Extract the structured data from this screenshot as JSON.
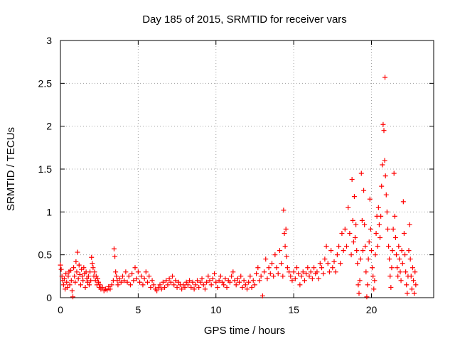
{
  "chart_data": {
    "type": "scatter",
    "title": "Day 185 of 2015, SRMTID for receiver vars",
    "xlabel": "GPS time / hours",
    "ylabel": "SRMTID / TECUs",
    "xlim": [
      0,
      24
    ],
    "ylim": [
      0,
      3
    ],
    "xticks": [
      "0",
      "5",
      "10",
      "15",
      "20"
    ],
    "yticks": [
      "0",
      "0.5",
      "1",
      "1.5",
      "2",
      "2.5",
      "3"
    ],
    "grid": true,
    "marker": "+",
    "color": "#ff0000",
    "series": [
      {
        "name": "vars",
        "points": [
          [
            0.0,
            0.38
          ],
          [
            0.05,
            0.33
          ],
          [
            0.1,
            0.25
          ],
          [
            0.15,
            0.2
          ],
          [
            0.2,
            0.15
          ],
          [
            0.25,
            0.22
          ],
          [
            0.3,
            0.1
          ],
          [
            0.35,
            0.28
          ],
          [
            0.4,
            0.18
          ],
          [
            0.45,
            0.12
          ],
          [
            0.5,
            0.25
          ],
          [
            0.55,
            0.3
          ],
          [
            0.6,
            0.15
          ],
          [
            0.65,
            0.32
          ],
          [
            0.7,
            0.2
          ],
          [
            0.75,
            0.08
          ],
          [
            0.8,
            0.01
          ],
          [
            0.85,
            0.35
          ],
          [
            0.9,
            0.25
          ],
          [
            0.95,
            0.18
          ],
          [
            1.0,
            0.42
          ],
          [
            1.05,
            0.3
          ],
          [
            1.1,
            0.53
          ],
          [
            1.15,
            0.22
          ],
          [
            1.2,
            0.38
          ],
          [
            1.25,
            0.27
          ],
          [
            1.3,
            0.15
          ],
          [
            1.35,
            0.33
          ],
          [
            1.4,
            0.25
          ],
          [
            1.45,
            0.2
          ],
          [
            1.5,
            0.35
          ],
          [
            1.55,
            0.28
          ],
          [
            1.6,
            0.12
          ],
          [
            1.65,
            0.3
          ],
          [
            1.7,
            0.22
          ],
          [
            1.75,
            0.18
          ],
          [
            1.8,
            0.25
          ],
          [
            1.85,
            0.15
          ],
          [
            1.9,
            0.3
          ],
          [
            1.95,
            0.2
          ],
          [
            2.0,
            0.47
          ],
          [
            2.05,
            0.4
          ],
          [
            2.1,
            0.35
          ],
          [
            2.15,
            0.25
          ],
          [
            2.2,
            0.3
          ],
          [
            2.25,
            0.2
          ],
          [
            2.3,
            0.25
          ],
          [
            2.35,
            0.15
          ],
          [
            2.4,
            0.22
          ],
          [
            2.45,
            0.18
          ],
          [
            2.5,
            0.12
          ],
          [
            2.55,
            0.15
          ],
          [
            2.6,
            0.1
          ],
          [
            2.7,
            0.12
          ],
          [
            2.8,
            0.08
          ],
          [
            2.9,
            0.1
          ],
          [
            3.0,
            0.09
          ],
          [
            3.1,
            0.13
          ],
          [
            3.2,
            0.1
          ],
          [
            3.3,
            0.15
          ],
          [
            3.4,
            0.2
          ],
          [
            3.45,
            0.57
          ],
          [
            3.5,
            0.48
          ],
          [
            3.55,
            0.3
          ],
          [
            3.6,
            0.25
          ],
          [
            3.65,
            0.2
          ],
          [
            3.7,
            0.15
          ],
          [
            3.8,
            0.22
          ],
          [
            3.9,
            0.18
          ],
          [
            4.0,
            0.25
          ],
          [
            4.1,
            0.2
          ],
          [
            4.2,
            0.3
          ],
          [
            4.3,
            0.18
          ],
          [
            4.4,
            0.25
          ],
          [
            4.5,
            0.15
          ],
          [
            4.6,
            0.28
          ],
          [
            4.7,
            0.2
          ],
          [
            4.8,
            0.35
          ],
          [
            4.9,
            0.22
          ],
          [
            5.0,
            0.3
          ],
          [
            5.1,
            0.18
          ],
          [
            5.2,
            0.25
          ],
          [
            5.3,
            0.15
          ],
          [
            5.4,
            0.22
          ],
          [
            5.5,
            0.3
          ],
          [
            5.6,
            0.18
          ],
          [
            5.7,
            0.25
          ],
          [
            5.8,
            0.12
          ],
          [
            5.9,
            0.2
          ],
          [
            6.0,
            0.15
          ],
          [
            6.1,
            0.1
          ],
          [
            6.2,
            0.08
          ],
          [
            6.3,
            0.12
          ],
          [
            6.4,
            0.15
          ],
          [
            6.5,
            0.1
          ],
          [
            6.6,
            0.18
          ],
          [
            6.7,
            0.12
          ],
          [
            6.8,
            0.2
          ],
          [
            6.9,
            0.15
          ],
          [
            7.0,
            0.22
          ],
          [
            7.1,
            0.18
          ],
          [
            7.2,
            0.25
          ],
          [
            7.3,
            0.15
          ],
          [
            7.4,
            0.2
          ],
          [
            7.5,
            0.12
          ],
          [
            7.6,
            0.18
          ],
          [
            7.7,
            0.15
          ],
          [
            7.8,
            0.1
          ],
          [
            7.9,
            0.15
          ],
          [
            8.0,
            0.12
          ],
          [
            8.1,
            0.18
          ],
          [
            8.2,
            0.15
          ],
          [
            8.3,
            0.2
          ],
          [
            8.4,
            0.12
          ],
          [
            8.5,
            0.18
          ],
          [
            8.6,
            0.1
          ],
          [
            8.7,
            0.15
          ],
          [
            8.8,
            0.2
          ],
          [
            8.9,
            0.12
          ],
          [
            9.0,
            0.18
          ],
          [
            9.1,
            0.22
          ],
          [
            9.2,
            0.15
          ],
          [
            9.3,
            0.1
          ],
          [
            9.4,
            0.18
          ],
          [
            9.5,
            0.25
          ],
          [
            9.6,
            0.2
          ],
          [
            9.7,
            0.15
          ],
          [
            9.8,
            0.22
          ],
          [
            9.9,
            0.28
          ],
          [
            10.0,
            0.18
          ],
          [
            10.1,
            0.12
          ],
          [
            10.2,
            0.2
          ],
          [
            10.3,
            0.25
          ],
          [
            10.4,
            0.18
          ],
          [
            10.5,
            0.15
          ],
          [
            10.6,
            0.22
          ],
          [
            10.7,
            0.12
          ],
          [
            10.8,
            0.2
          ],
          [
            10.9,
            0.18
          ],
          [
            11.0,
            0.25
          ],
          [
            11.1,
            0.3
          ],
          [
            11.2,
            0.2
          ],
          [
            11.3,
            0.15
          ],
          [
            11.4,
            0.22
          ],
          [
            11.5,
            0.18
          ],
          [
            11.6,
            0.25
          ],
          [
            11.7,
            0.12
          ],
          [
            11.8,
            0.2
          ],
          [
            11.9,
            0.15
          ],
          [
            12.0,
            0.1
          ],
          [
            12.1,
            0.18
          ],
          [
            12.2,
            0.25
          ],
          [
            12.3,
            0.12
          ],
          [
            12.4,
            0.2
          ],
          [
            12.5,
            0.15
          ],
          [
            12.6,
            0.28
          ],
          [
            12.7,
            0.35
          ],
          [
            12.8,
            0.2
          ],
          [
            12.9,
            0.25
          ],
          [
            13.0,
            0.02
          ],
          [
            13.1,
            0.3
          ],
          [
            13.2,
            0.45
          ],
          [
            13.3,
            0.22
          ],
          [
            13.4,
            0.35
          ],
          [
            13.5,
            0.28
          ],
          [
            13.6,
            0.4
          ],
          [
            13.7,
            0.25
          ],
          [
            13.8,
            0.5
          ],
          [
            13.9,
            0.35
          ],
          [
            14.0,
            0.28
          ],
          [
            14.1,
            0.55
          ],
          [
            14.2,
            0.4
          ],
          [
            14.3,
            0.25
          ],
          [
            14.35,
            1.02
          ],
          [
            14.4,
            0.75
          ],
          [
            14.45,
            0.6
          ],
          [
            14.5,
            0.8
          ],
          [
            14.55,
            0.48
          ],
          [
            14.6,
            0.35
          ],
          [
            14.7,
            0.3
          ],
          [
            14.8,
            0.25
          ],
          [
            14.9,
            0.2
          ],
          [
            15.0,
            0.3
          ],
          [
            15.1,
            0.22
          ],
          [
            15.2,
            0.35
          ],
          [
            15.3,
            0.28
          ],
          [
            15.4,
            0.15
          ],
          [
            15.5,
            0.25
          ],
          [
            15.6,
            0.3
          ],
          [
            15.7,
            0.2
          ],
          [
            15.8,
            0.28
          ],
          [
            15.9,
            0.35
          ],
          [
            16.0,
            0.25
          ],
          [
            16.1,
            0.3
          ],
          [
            16.2,
            0.22
          ],
          [
            16.3,
            0.35
          ],
          [
            16.4,
            0.28
          ],
          [
            16.5,
            0.3
          ],
          [
            16.6,
            0.22
          ],
          [
            16.7,
            0.4
          ],
          [
            16.8,
            0.35
          ],
          [
            16.9,
            0.28
          ],
          [
            17.0,
            0.45
          ],
          [
            17.1,
            0.6
          ],
          [
            17.2,
            0.4
          ],
          [
            17.3,
            0.3
          ],
          [
            17.4,
            0.55
          ],
          [
            17.5,
            0.35
          ],
          [
            17.6,
            0.42
          ],
          [
            17.7,
            0.3
          ],
          [
            17.8,
            0.5
          ],
          [
            17.9,
            0.6
          ],
          [
            18.0,
            0.4
          ],
          [
            18.1,
            0.75
          ],
          [
            18.2,
            0.55
          ],
          [
            18.3,
            0.8
          ],
          [
            18.4,
            0.6
          ],
          [
            18.5,
            1.05
          ],
          [
            18.6,
            0.75
          ],
          [
            18.7,
            0.5
          ],
          [
            18.75,
            1.38
          ],
          [
            18.8,
            0.9
          ],
          [
            18.85,
            0.65
          ],
          [
            18.9,
            1.18
          ],
          [
            18.95,
            0.7
          ],
          [
            19.0,
            0.85
          ],
          [
            19.05,
            0.55
          ],
          [
            19.1,
            0.4
          ],
          [
            19.15,
            0.15
          ],
          [
            19.2,
            0.05
          ],
          [
            19.25,
            0.2
          ],
          [
            19.3,
            0.45
          ],
          [
            19.35,
            1.45
          ],
          [
            19.4,
            0.9
          ],
          [
            19.45,
            0.55
          ],
          [
            19.5,
            1.25
          ],
          [
            19.55,
            0.85
          ],
          [
            19.6,
            0.6
          ],
          [
            19.65,
            0.3
          ],
          [
            19.7,
            0.01
          ],
          [
            19.75,
            0.15
          ],
          [
            19.8,
            0.45
          ],
          [
            19.85,
            0.65
          ],
          [
            19.9,
            1.15
          ],
          [
            19.95,
            0.8
          ],
          [
            20.0,
            0.55
          ],
          [
            20.05,
            0.35
          ],
          [
            20.1,
            0.25
          ],
          [
            20.15,
            0.1
          ],
          [
            20.2,
            0.2
          ],
          [
            20.25,
            0.5
          ],
          [
            20.3,
            0.75
          ],
          [
            20.35,
            0.95
          ],
          [
            20.4,
            0.6
          ],
          [
            20.45,
            1.05
          ],
          [
            20.5,
            0.85
          ],
          [
            20.55,
            0.7
          ],
          [
            20.6,
            0.95
          ],
          [
            20.65,
            1.3
          ],
          [
            20.7,
            1.55
          ],
          [
            20.75,
            2.02
          ],
          [
            20.8,
            1.95
          ],
          [
            20.85,
            1.6
          ],
          [
            20.87,
            2.57
          ],
          [
            20.9,
            1.42
          ],
          [
            20.95,
            1.2
          ],
          [
            21.0,
            1.0
          ],
          [
            21.05,
            0.8
          ],
          [
            21.1,
            0.6
          ],
          [
            21.15,
            0.45
          ],
          [
            21.2,
            0.25
          ],
          [
            21.25,
            0.12
          ],
          [
            21.3,
            0.35
          ],
          [
            21.35,
            0.55
          ],
          [
            21.4,
            0.8
          ],
          [
            21.45,
            1.45
          ],
          [
            21.5,
            0.95
          ],
          [
            21.55,
            0.7
          ],
          [
            21.6,
            0.5
          ],
          [
            21.65,
            0.35
          ],
          [
            21.7,
            0.25
          ],
          [
            21.75,
            0.6
          ],
          [
            21.8,
            0.45
          ],
          [
            21.85,
            0.3
          ],
          [
            21.9,
            0.2
          ],
          [
            21.95,
            0.55
          ],
          [
            22.0,
            0.4
          ],
          [
            22.05,
            1.12
          ],
          [
            22.1,
            0.75
          ],
          [
            22.15,
            0.5
          ],
          [
            22.2,
            0.3
          ],
          [
            22.25,
            0.15
          ],
          [
            22.3,
            0.05
          ],
          [
            22.35,
            0.25
          ],
          [
            22.4,
            0.55
          ],
          [
            22.45,
            0.85
          ],
          [
            22.5,
            0.45
          ],
          [
            22.55,
            0.25
          ],
          [
            22.6,
            0.1
          ],
          [
            22.65,
            0.35
          ],
          [
            22.7,
            0.2
          ],
          [
            22.75,
            0.05
          ],
          [
            22.8,
            0.3
          ],
          [
            22.85,
            0.15
          ]
        ]
      }
    ]
  }
}
